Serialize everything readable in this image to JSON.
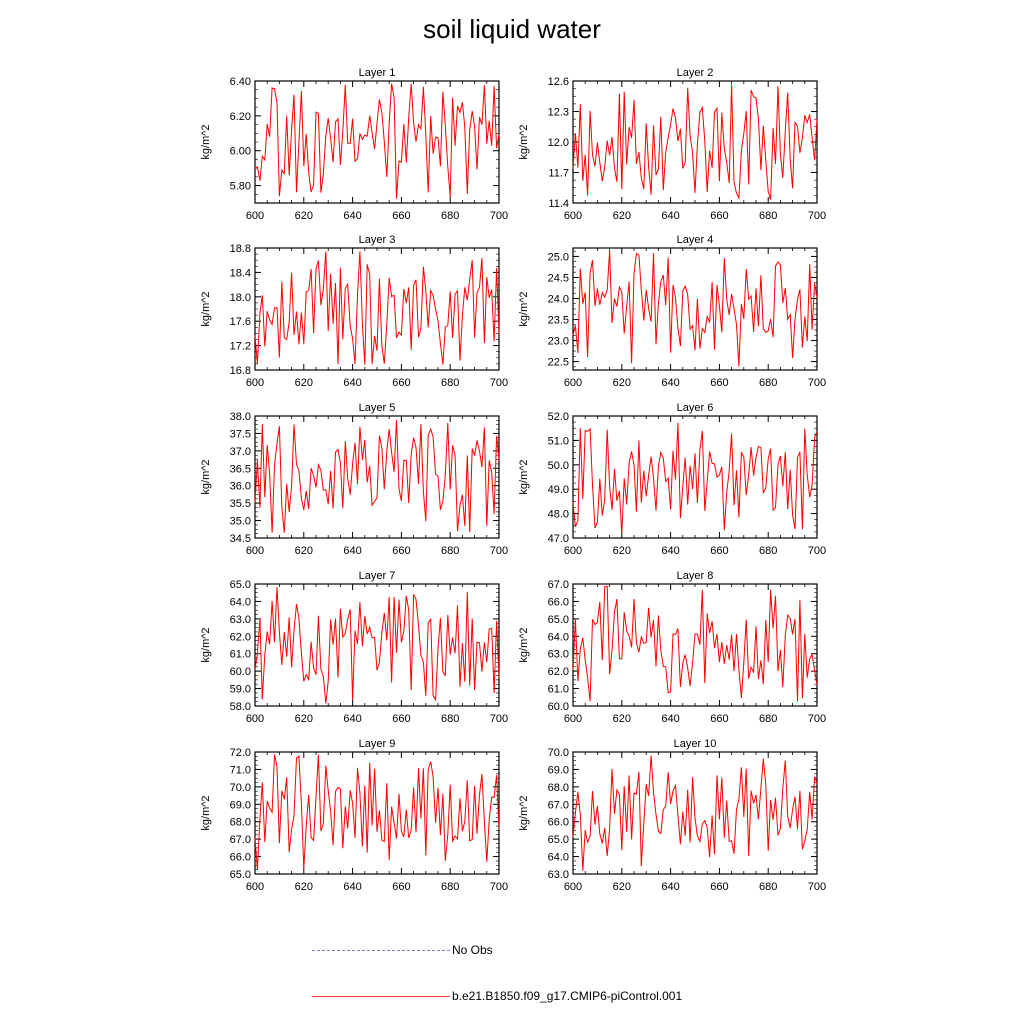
{
  "title": "soil liquid water",
  "legend": [
    {
      "label": "No Obs",
      "color": "#8080d0",
      "style": "dashed"
    },
    {
      "label": "b.e21.B1850.f09_g17.CMIP6-piControl.001",
      "color": "#ff0000",
      "style": "solid"
    }
  ],
  "chart_data": [
    {
      "type": "line",
      "title": "Layer 1",
      "ylabel": "kg/m^2",
      "xlim": [
        600,
        700
      ],
      "xticks": [
        600,
        620,
        640,
        660,
        680,
        700
      ],
      "ylim": [
        5.7,
        6.4
      ],
      "yticks": [
        "5.80",
        "6.00",
        "6.20",
        "6.40"
      ],
      "ytick_values": [
        5.8,
        6.0,
        6.2,
        6.4
      ],
      "seed": 11
    },
    {
      "type": "line",
      "title": "Layer 2",
      "ylabel": "kg/m^2",
      "xlim": [
        600,
        700
      ],
      "xticks": [
        600,
        620,
        640,
        660,
        680,
        700
      ],
      "ylim": [
        11.4,
        12.6
      ],
      "yticks": [
        "11.4",
        "11.7",
        "12.0",
        "12.3",
        "12.6"
      ],
      "ytick_values": [
        11.4,
        11.7,
        12.0,
        12.3,
        12.6
      ],
      "seed": 23
    },
    {
      "type": "line",
      "title": "Layer 3",
      "ylabel": "kg/m^2",
      "xlim": [
        600,
        700
      ],
      "xticks": [
        600,
        620,
        640,
        660,
        680,
        700
      ],
      "ylim": [
        16.8,
        18.8
      ],
      "yticks": [
        "16.8",
        "17.2",
        "17.6",
        "18.0",
        "18.4",
        "18.8"
      ],
      "ytick_values": [
        16.8,
        17.2,
        17.6,
        18.0,
        18.4,
        18.8
      ],
      "seed": 37
    },
    {
      "type": "line",
      "title": "Layer 4",
      "ylabel": "kg/m^2",
      "xlim": [
        600,
        700
      ],
      "xticks": [
        600,
        620,
        640,
        660,
        680,
        700
      ],
      "ylim": [
        22.3,
        25.2
      ],
      "yticks": [
        "22.5",
        "23.0",
        "23.5",
        "24.0",
        "24.5",
        "25.0"
      ],
      "ytick_values": [
        22.5,
        23.0,
        23.5,
        24.0,
        24.5,
        25.0
      ],
      "seed": 41
    },
    {
      "type": "line",
      "title": "Layer 5",
      "ylabel": "kg/m^2",
      "xlim": [
        600,
        700
      ],
      "xticks": [
        600,
        620,
        640,
        660,
        680,
        700
      ],
      "ylim": [
        34.5,
        38.0
      ],
      "yticks": [
        "34.5",
        "35.0",
        "35.5",
        "36.0",
        "36.5",
        "37.0",
        "37.5",
        "38.0"
      ],
      "ytick_values": [
        34.5,
        35.0,
        35.5,
        36.0,
        36.5,
        37.0,
        37.5,
        38.0
      ],
      "seed": 53
    },
    {
      "type": "line",
      "title": "Layer 6",
      "ylabel": "kg/m^2",
      "xlim": [
        600,
        700
      ],
      "xticks": [
        600,
        620,
        640,
        660,
        680,
        700
      ],
      "ylim": [
        47.0,
        52.0
      ],
      "yticks": [
        "47.0",
        "48.0",
        "49.0",
        "50.0",
        "51.0",
        "52.0"
      ],
      "ytick_values": [
        47.0,
        48.0,
        49.0,
        50.0,
        51.0,
        52.0
      ],
      "seed": 67
    },
    {
      "type": "line",
      "title": "Layer 7",
      "ylabel": "kg/m^2",
      "xlim": [
        600,
        700
      ],
      "xticks": [
        600,
        620,
        640,
        660,
        680,
        700
      ],
      "ylim": [
        58.0,
        65.0
      ],
      "yticks": [
        "58.0",
        "59.0",
        "60.0",
        "61.0",
        "62.0",
        "63.0",
        "64.0",
        "65.0"
      ],
      "ytick_values": [
        58,
        59,
        60,
        61,
        62,
        63,
        64,
        65
      ],
      "seed": 71
    },
    {
      "type": "line",
      "title": "Layer 8",
      "ylabel": "kg/m^2",
      "xlim": [
        600,
        700
      ],
      "xticks": [
        600,
        620,
        640,
        660,
        680,
        700
      ],
      "ylim": [
        60.0,
        67.0
      ],
      "yticks": [
        "60.0",
        "61.0",
        "62.0",
        "63.0",
        "64.0",
        "65.0",
        "66.0",
        "67.0"
      ],
      "ytick_values": [
        60,
        61,
        62,
        63,
        64,
        65,
        66,
        67
      ],
      "seed": 83
    },
    {
      "type": "line",
      "title": "Layer 9",
      "ylabel": "kg/m^2",
      "xlim": [
        600,
        700
      ],
      "xticks": [
        600,
        620,
        640,
        660,
        680,
        700
      ],
      "ylim": [
        65.0,
        72.0
      ],
      "yticks": [
        "65.0",
        "66.0",
        "67.0",
        "68.0",
        "69.0",
        "70.0",
        "71.0",
        "72.0"
      ],
      "ytick_values": [
        65,
        66,
        67,
        68,
        69,
        70,
        71,
        72
      ],
      "seed": 97
    },
    {
      "type": "line",
      "title": "Layer 10",
      "ylabel": "kg/m^2",
      "xlim": [
        600,
        700
      ],
      "xticks": [
        600,
        620,
        640,
        660,
        680,
        700
      ],
      "ylim": [
        63.0,
        70.0
      ],
      "yticks": [
        "63.0",
        "64.0",
        "65.0",
        "66.0",
        "67.0",
        "68.0",
        "69.0",
        "70.0"
      ],
      "ytick_values": [
        63,
        64,
        65,
        66,
        67,
        68,
        69,
        70
      ],
      "seed": 101
    }
  ]
}
